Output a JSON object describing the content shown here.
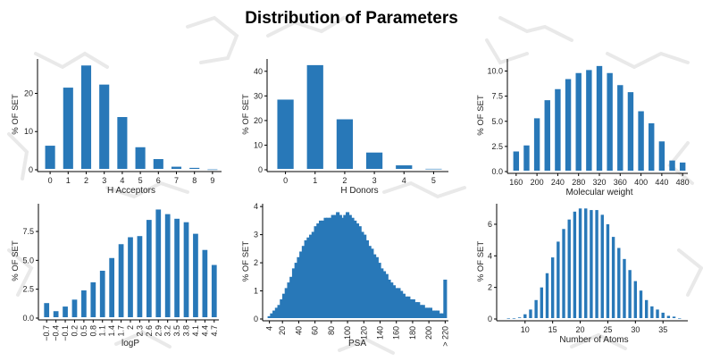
{
  "title": "Distribution of Parameters",
  "colors": {
    "bar": "#2878b8",
    "axis": "#000000",
    "background_pattern": "#e9e9e9"
  },
  "chart_data": [
    {
      "type": "bar",
      "xlabel": "H Acceptors",
      "ylabel": "% OF SET",
      "x_ticks": [
        "0",
        "1",
        "2",
        "3",
        "4",
        "5",
        "6",
        "7",
        "8",
        "9"
      ],
      "categories": [
        0,
        1,
        2,
        3,
        4,
        5,
        6,
        7,
        8,
        9
      ],
      "values": [
        6.3,
        21.5,
        27.3,
        22.3,
        13.8,
        5.9,
        2.8,
        0.8,
        0.5,
        0.1
      ],
      "y_ticks": [
        0,
        10,
        20
      ],
      "ylim": [
        0,
        29
      ],
      "grid": false
    },
    {
      "type": "bar",
      "xlabel": "H Donors",
      "ylabel": "% OF SET",
      "x_ticks": [
        "0",
        "1",
        "2",
        "3",
        "4",
        "5"
      ],
      "categories": [
        0,
        1,
        2,
        3,
        4,
        5
      ],
      "values": [
        28.5,
        42.5,
        20.5,
        7.0,
        1.8,
        0.4
      ],
      "y_ticks": [
        0,
        10,
        20,
        30,
        40
      ],
      "ylim": [
        0,
        45
      ],
      "grid": false
    },
    {
      "type": "bar",
      "xlabel": "Molecular weight",
      "ylabel": "% OF SET",
      "x_ticks": [
        "160",
        "200",
        "240",
        "280",
        "320",
        "360",
        "400",
        "440",
        "480"
      ],
      "categories": [
        160,
        180,
        200,
        220,
        240,
        260,
        280,
        300,
        320,
        340,
        360,
        380,
        400,
        420,
        440,
        460,
        480
      ],
      "values": [
        2.0,
        2.6,
        5.3,
        7.1,
        8.2,
        9.2,
        9.8,
        10.1,
        10.5,
        9.8,
        8.6,
        7.9,
        6.0,
        4.8,
        3.0,
        1.1,
        0.9
      ],
      "y_ticks": [
        0.0,
        2.5,
        5.0,
        7.5,
        10.0
      ],
      "y_tick_labels": [
        "0.0",
        "2.5",
        "5.0",
        "7.5",
        "10.0"
      ],
      "ylim": [
        0,
        11.2
      ],
      "grid": false
    },
    {
      "type": "bar",
      "xlabel": "logP",
      "ylabel": "% OF SET",
      "x_ticks": [
        "−0.7",
        "−0.4",
        "−0.1",
        "0.2",
        "0.5",
        "0.8",
        "1.1",
        "1.4",
        "1.7",
        "2",
        "2.3",
        "2.6",
        "2.9",
        "3.2",
        "3.5",
        "3.8",
        "4.1",
        "4.4",
        "4.7"
      ],
      "categories": [
        -0.7,
        -0.4,
        -0.1,
        0.2,
        0.5,
        0.8,
        1.1,
        1.4,
        1.7,
        2.0,
        2.3,
        2.6,
        2.9,
        3.2,
        3.5,
        3.8,
        4.1,
        4.4,
        4.7
      ],
      "values": [
        1.3,
        0.6,
        1.0,
        1.6,
        2.4,
        3.1,
        4.1,
        5.2,
        6.4,
        7.0,
        7.1,
        8.5,
        9.4,
        9.0,
        8.6,
        8.3,
        7.3,
        5.9,
        4.6
      ],
      "y_ticks": [
        0.0,
        2.5,
        5.0,
        7.5
      ],
      "y_tick_labels": [
        "0.0",
        "2.5",
        "5.0",
        "7.5"
      ],
      "ylim": [
        0,
        9.9
      ],
      "grid": false
    },
    {
      "type": "bar",
      "xlabel": "PSA",
      "ylabel": "% OF SET",
      "x_ticks": [
        "4",
        "20",
        "40",
        "60",
        "80",
        "100",
        "120",
        "140",
        "160",
        "180",
        "200",
        "> 220"
      ],
      "x_tick_positions": [
        4,
        20,
        40,
        60,
        80,
        100,
        120,
        140,
        160,
        180,
        200,
        220
      ],
      "categories": [
        4,
        7,
        10,
        13,
        16,
        19,
        22,
        25,
        28,
        31,
        34,
        37,
        40,
        43,
        46,
        49,
        52,
        55,
        58,
        61,
        64,
        67,
        70,
        73,
        76,
        79,
        82,
        85,
        88,
        91,
        94,
        97,
        100,
        103,
        106,
        109,
        112,
        115,
        118,
        121,
        124,
        127,
        130,
        133,
        136,
        139,
        142,
        145,
        148,
        151,
        154,
        157,
        160,
        163,
        166,
        169,
        172,
        175,
        178,
        181,
        184,
        187,
        190,
        193,
        196,
        199,
        202,
        205,
        208,
        211,
        214,
        217,
        220
      ],
      "values": [
        0.1,
        0.2,
        0.3,
        0.4,
        0.5,
        0.7,
        0.9,
        1.1,
        1.3,
        1.5,
        1.8,
        2.0,
        2.2,
        2.4,
        2.6,
        2.8,
        2.9,
        3.0,
        3.1,
        3.3,
        3.4,
        3.5,
        3.5,
        3.6,
        3.6,
        3.6,
        3.7,
        3.7,
        3.8,
        3.7,
        3.6,
        3.7,
        3.8,
        3.7,
        3.6,
        3.5,
        3.4,
        3.3,
        3.1,
        3.0,
        2.8,
        2.6,
        2.5,
        2.3,
        2.2,
        2.0,
        1.8,
        1.7,
        1.6,
        1.4,
        1.3,
        1.2,
        1.1,
        1.1,
        1.0,
        0.9,
        0.8,
        0.8,
        0.7,
        0.7,
        0.6,
        0.6,
        0.5,
        0.5,
        0.4,
        0.4,
        0.4,
        0.3,
        0.3,
        0.3,
        0.2,
        0.2,
        1.4
      ],
      "y_ticks": [
        0,
        1,
        2,
        3,
        4
      ],
      "ylim": [
        0,
        4.1
      ],
      "grid": false
    },
    {
      "type": "bar",
      "xlabel": "Number of Atoms",
      "ylabel": "% OF SET",
      "x_ticks": [
        "10",
        "15",
        "20",
        "25",
        "30",
        "35"
      ],
      "x_tick_positions": [
        10,
        15,
        20,
        25,
        30,
        35
      ],
      "categories": [
        7,
        8,
        9,
        10,
        11,
        12,
        13,
        14,
        15,
        16,
        17,
        18,
        19,
        20,
        21,
        22,
        23,
        24,
        25,
        26,
        27,
        28,
        29,
        30,
        31,
        32,
        33,
        34,
        35,
        36,
        37,
        38
      ],
      "values": [
        0.05,
        0.05,
        0.1,
        0.3,
        0.6,
        1.2,
        2.0,
        2.9,
        3.9,
        4.9,
        5.7,
        6.3,
        6.8,
        7.0,
        7.0,
        6.9,
        6.9,
        6.6,
        6.0,
        5.2,
        4.5,
        3.8,
        3.1,
        2.4,
        1.8,
        1.2,
        0.8,
        0.6,
        0.4,
        0.2,
        0.15,
        0.05
      ],
      "y_ticks": [
        0,
        2,
        4,
        6
      ],
      "ylim": [
        0,
        7.3
      ],
      "grid": false
    }
  ]
}
